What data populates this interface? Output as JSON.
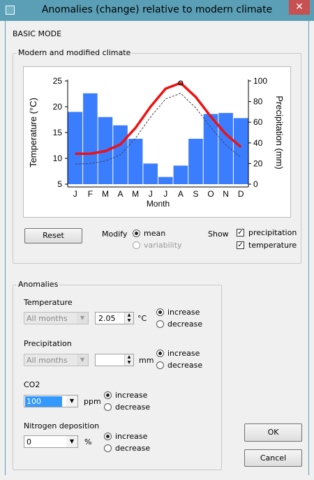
{
  "window": {
    "title": "Anomalies (change) relative to modern climate",
    "close_glyph": "✕"
  },
  "mode_label": "BASIC MODE",
  "climate_group": {
    "legend": "Modern and modified climate",
    "reset_label": "Reset",
    "modify_label": "Modify",
    "modify_options": [
      "mean",
      "variability"
    ],
    "show_label": "Show",
    "show_options": [
      "precipitation",
      "temperature"
    ]
  },
  "anomalies_group": {
    "legend": "Anomalies",
    "temperature": {
      "label": "Temperature",
      "months": "All months",
      "value": "2.05",
      "unit": "°C",
      "options": [
        "increase",
        "decrease"
      ]
    },
    "precipitation": {
      "label": "Precipitation",
      "months": "All months",
      "value": "",
      "unit": "mm",
      "options": [
        "increase",
        "decrease"
      ]
    },
    "co2": {
      "label": "CO2",
      "value": "100",
      "unit": "ppm",
      "options": [
        "increase",
        "decrease"
      ]
    },
    "nitrogen": {
      "label": "Nitrogen deposition",
      "value": "0",
      "unit": "%",
      "options": [
        "increase",
        "decrease"
      ]
    }
  },
  "ok_label": "OK",
  "cancel_label": "Cancel",
  "colors": {
    "bars": "#3b7dff",
    "modified_temp": "#ee1111",
    "modern_temp": "#444444"
  },
  "chart_data": {
    "type": "bar",
    "categories": [
      "J",
      "F",
      "M",
      "A",
      "M",
      "J",
      "J",
      "A",
      "S",
      "O",
      "N",
      "D"
    ],
    "xlabel": "Month",
    "ylabel_left": "Temperature (°C)",
    "ylabel_right": "Precipitation (mm)",
    "left_ticks": [
      5,
      10,
      15,
      20,
      25
    ],
    "right_ticks": [
      0,
      20,
      40,
      60,
      80,
      100
    ],
    "ylim_left": [
      5,
      25
    ],
    "ylim_right": [
      0,
      100
    ],
    "series": [
      {
        "name": "precipitation",
        "axis": "right",
        "type": "bar",
        "values": [
          70,
          88,
          65,
          57,
          44,
          20,
          7,
          18,
          44,
          68,
          69,
          64
        ]
      },
      {
        "name": "modified temperature",
        "axis": "left",
        "type": "line",
        "values": [
          10.9,
          10.9,
          11.4,
          12.7,
          15.9,
          20.0,
          23.5,
          24.6,
          21.9,
          18.1,
          14.7,
          12.2
        ]
      },
      {
        "name": "modern temperature",
        "axis": "left",
        "type": "line",
        "values": [
          8.9,
          9.0,
          9.5,
          10.7,
          13.9,
          18.0,
          21.5,
          22.6,
          19.8,
          16.0,
          12.6,
          10.2
        ]
      }
    ],
    "marker_index": 7
  }
}
